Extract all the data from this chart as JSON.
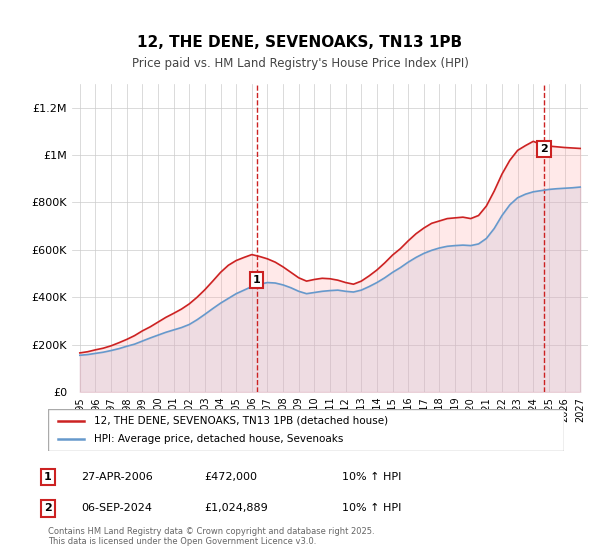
{
  "title": "12, THE DENE, SEVENOAKS, TN13 1PB",
  "subtitle": "Price paid vs. HM Land Registry's House Price Index (HPI)",
  "ylabel": "",
  "bg_color": "#ffffff",
  "plot_bg_color": "#ffffff",
  "grid_color": "#cccccc",
  "line_color_hpi": "#6699cc",
  "line_color_price": "#cc2222",
  "shade_color_hpi": "#aabbdd",
  "shade_color_price": "#ffaaaa",
  "marker1_x": 2006.32,
  "marker1_y": 472000,
  "marker2_x": 2024.68,
  "marker2_y": 1024889,
  "ylim": [
    0,
    1300000
  ],
  "xlim": [
    1994.5,
    2027.5
  ],
  "yticks": [
    0,
    200000,
    400000,
    600000,
    800000,
    1000000,
    1200000
  ],
  "ytick_labels": [
    "£0",
    "£200K",
    "£400K",
    "£600K",
    "£800K",
    "£1M",
    "£1.2M"
  ],
  "xticks": [
    1995,
    1996,
    1997,
    1998,
    1999,
    2000,
    2001,
    2002,
    2003,
    2004,
    2005,
    2006,
    2007,
    2008,
    2009,
    2010,
    2011,
    2012,
    2013,
    2014,
    2015,
    2016,
    2017,
    2018,
    2019,
    2020,
    2021,
    2022,
    2023,
    2024,
    2025,
    2026,
    2027
  ],
  "legend_price_label": "12, THE DENE, SEVENOAKS, TN13 1PB (detached house)",
  "legend_hpi_label": "HPI: Average price, detached house, Sevenoaks",
  "annotation1_label": "1",
  "annotation2_label": "2",
  "table_rows": [
    {
      "num": "1",
      "date": "27-APR-2006",
      "price": "£472,000",
      "change": "10% ↑ HPI"
    },
    {
      "num": "2",
      "date": "06-SEP-2024",
      "price": "£1,024,889",
      "change": "10% ↑ HPI"
    }
  ],
  "footer": "Contains HM Land Registry data © Crown copyright and database right 2025.\nThis data is licensed under the Open Government Licence v3.0.",
  "hpi_years": [
    1995,
    1995.5,
    1996,
    1996.5,
    1997,
    1997.5,
    1998,
    1998.5,
    1999,
    1999.5,
    2000,
    2000.5,
    2001,
    2001.5,
    2002,
    2002.5,
    2003,
    2003.5,
    2004,
    2004.5,
    2005,
    2005.5,
    2006,
    2006.5,
    2007,
    2007.5,
    2008,
    2008.5,
    2009,
    2009.5,
    2010,
    2010.5,
    2011,
    2011.5,
    2012,
    2012.5,
    2013,
    2013.5,
    2014,
    2014.5,
    2015,
    2015.5,
    2016,
    2016.5,
    2017,
    2017.5,
    2018,
    2018.5,
    2019,
    2019.5,
    2020,
    2020.5,
    2021,
    2021.5,
    2022,
    2022.5,
    2023,
    2023.5,
    2024,
    2024.5,
    2025,
    2025.5,
    2026,
    2026.5,
    2027
  ],
  "hpi_values": [
    155000,
    158000,
    163000,
    168000,
    175000,
    183000,
    193000,
    202000,
    215000,
    228000,
    240000,
    252000,
    262000,
    272000,
    285000,
    305000,
    328000,
    352000,
    375000,
    395000,
    415000,
    430000,
    445000,
    455000,
    462000,
    460000,
    452000,
    440000,
    425000,
    415000,
    420000,
    425000,
    428000,
    430000,
    425000,
    422000,
    430000,
    445000,
    462000,
    482000,
    505000,
    525000,
    548000,
    568000,
    585000,
    598000,
    608000,
    615000,
    618000,
    620000,
    618000,
    625000,
    648000,
    690000,
    745000,
    790000,
    820000,
    835000,
    845000,
    850000,
    855000,
    858000,
    860000,
    862000,
    865000
  ],
  "price_years": [
    1995,
    1995.5,
    1996,
    1996.5,
    1997,
    1997.5,
    1998,
    1998.5,
    1999,
    1999.5,
    2000,
    2000.5,
    2001,
    2001.5,
    2002,
    2002.5,
    2003,
    2003.5,
    2004,
    2004.5,
    2005,
    2005.5,
    2006,
    2006.5,
    2007,
    2007.5,
    2008,
    2008.5,
    2009,
    2009.5,
    2010,
    2010.5,
    2011,
    2011.5,
    2012,
    2012.5,
    2013,
    2013.5,
    2014,
    2014.5,
    2015,
    2015.5,
    2016,
    2016.5,
    2017,
    2017.5,
    2018,
    2018.5,
    2019,
    2019.5,
    2020,
    2020.5,
    2021,
    2021.5,
    2022,
    2022.5,
    2023,
    2023.5,
    2024,
    2024.5,
    2025,
    2025.5,
    2026,
    2026.5,
    2027
  ],
  "price_values": [
    165000,
    170000,
    178000,
    185000,
    195000,
    208000,
    222000,
    238000,
    258000,
    275000,
    295000,
    315000,
    332000,
    350000,
    372000,
    400000,
    432000,
    468000,
    505000,
    535000,
    555000,
    568000,
    580000,
    572000,
    562000,
    548000,
    528000,
    505000,
    482000,
    468000,
    475000,
    480000,
    478000,
    472000,
    462000,
    455000,
    468000,
    490000,
    515000,
    545000,
    578000,
    605000,
    638000,
    668000,
    692000,
    712000,
    722000,
    732000,
    735000,
    738000,
    732000,
    745000,
    785000,
    848000,
    920000,
    978000,
    1020000,
    1040000,
    1058000,
    1045000,
    1038000,
    1035000,
    1032000,
    1030000,
    1028000
  ]
}
